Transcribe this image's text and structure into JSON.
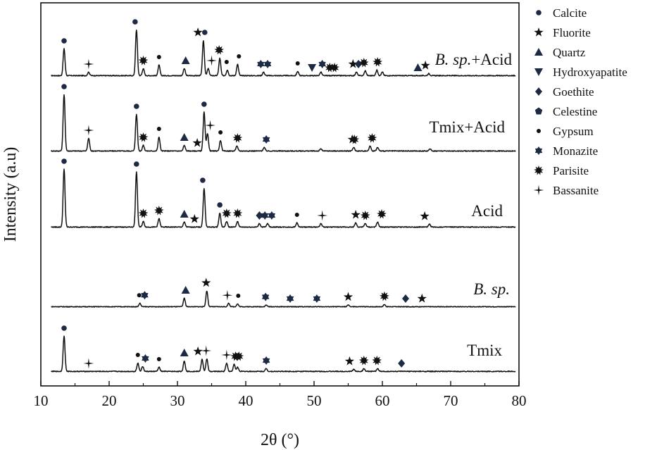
{
  "chart_data": {
    "type": "line",
    "xlabel": "2θ (°)",
    "ylabel": "Intensity (a.u)",
    "xlim": [
      10,
      80
    ],
    "xticks": [
      10,
      20,
      30,
      40,
      50,
      60,
      70,
      80
    ],
    "legend_position": "right",
    "legend": [
      {
        "phase": "Calcite",
        "marker": "filled-circle"
      },
      {
        "phase": "Fluorite",
        "marker": "filled-star"
      },
      {
        "phase": "Quartz",
        "marker": "filled-triangle-up"
      },
      {
        "phase": "Hydroxyapatite",
        "marker": "filled-triangle-down"
      },
      {
        "phase": "Goethite",
        "marker": "filled-diamond"
      },
      {
        "phase": "Celestine",
        "marker": "filled-pentagon"
      },
      {
        "phase": "Gypsum",
        "marker": "small-filled-dot"
      },
      {
        "phase": "Monazite",
        "marker": "filled-flower"
      },
      {
        "phase": "Parisite",
        "marker": "filled-burst"
      },
      {
        "phase": "Bassanite",
        "marker": "thin-cross-star"
      }
    ],
    "series": [
      {
        "name": "B. sp.+Acid",
        "label_parts": [
          {
            "text": "B. sp.",
            "italic": true
          },
          {
            "text": "+Acid",
            "italic": false
          }
        ],
        "peaks": [
          [
            13.4,
            0.38
          ],
          [
            17.0,
            0.05
          ],
          [
            24.0,
            0.65
          ],
          [
            25.0,
            0.1
          ],
          [
            27.3,
            0.15
          ],
          [
            31.0,
            0.1
          ],
          [
            33.8,
            0.5
          ],
          [
            34.5,
            0.1
          ],
          [
            36.2,
            0.25
          ],
          [
            37.3,
            0.08
          ],
          [
            38.8,
            0.16
          ],
          [
            42.6,
            0.05
          ],
          [
            47.6,
            0.06
          ],
          [
            51.0,
            0.05
          ],
          [
            56.2,
            0.05
          ],
          [
            57.5,
            0.07
          ],
          [
            59.2,
            0.08
          ],
          [
            60.0,
            0.05
          ],
          [
            66.8,
            0.03
          ]
        ],
        "markers": [
          {
            "x": 13.4,
            "phase": "Calcite"
          },
          {
            "x": 17.0,
            "phase": "Bassanite"
          },
          {
            "x": 23.8,
            "phase": "Calcite"
          },
          {
            "x": 25.0,
            "phase": "Parisite"
          },
          {
            "x": 27.3,
            "phase": "Gypsum"
          },
          {
            "x": 31.2,
            "phase": "Quartz"
          },
          {
            "x": 33.0,
            "phase": "Fluorite"
          },
          {
            "x": 34.0,
            "phase": "Calcite"
          },
          {
            "x": 35.0,
            "phase": "Bassanite"
          },
          {
            "x": 36.1,
            "phase": "Parisite"
          },
          {
            "x": 37.2,
            "phase": "Gypsum"
          },
          {
            "x": 39.0,
            "phase": "Gypsum"
          },
          {
            "x": 42.2,
            "phase": "Monazite"
          },
          {
            "x": 43.2,
            "phase": "Monazite"
          },
          {
            "x": 47.6,
            "phase": "Gypsum"
          },
          {
            "x": 49.7,
            "phase": "Hydroxyapatite"
          },
          {
            "x": 51.2,
            "phase": "Monazite"
          },
          {
            "x": 52.3,
            "phase": "Parisite"
          },
          {
            "x": 53.0,
            "phase": "Parisite"
          },
          {
            "x": 55.7,
            "phase": "Fluorite"
          },
          {
            "x": 56.5,
            "phase": "Goethite"
          },
          {
            "x": 57.3,
            "phase": "Parisite"
          },
          {
            "x": 59.3,
            "phase": "Parisite"
          },
          {
            "x": 65.2,
            "phase": "Quartz"
          },
          {
            "x": 66.3,
            "phase": "Fluorite"
          }
        ]
      },
      {
        "name": "Tmix+Acid",
        "label_parts": [
          {
            "text": "Tmix+Acid",
            "italic": false
          }
        ],
        "peaks": [
          [
            13.4,
            0.8
          ],
          [
            17.0,
            0.18
          ],
          [
            24.0,
            0.52
          ],
          [
            25.0,
            0.08
          ],
          [
            27.3,
            0.2
          ],
          [
            31.0,
            0.08
          ],
          [
            33.9,
            0.55
          ],
          [
            34.4,
            0.25
          ],
          [
            36.3,
            0.15
          ],
          [
            38.7,
            0.07
          ],
          [
            42.7,
            0.05
          ],
          [
            51.0,
            0.03
          ],
          [
            55.8,
            0.05
          ],
          [
            58.2,
            0.07
          ],
          [
            59.3,
            0.05
          ],
          [
            67.0,
            0.03
          ]
        ],
        "markers": [
          {
            "x": 13.4,
            "phase": "Calcite"
          },
          {
            "x": 17.0,
            "phase": "Bassanite"
          },
          {
            "x": 24.0,
            "phase": "Calcite"
          },
          {
            "x": 25.0,
            "phase": "Parisite"
          },
          {
            "x": 27.3,
            "phase": "Gypsum"
          },
          {
            "x": 31.0,
            "phase": "Quartz"
          },
          {
            "x": 32.9,
            "phase": "Fluorite"
          },
          {
            "x": 33.9,
            "phase": "Calcite"
          },
          {
            "x": 34.8,
            "phase": "Bassanite"
          },
          {
            "x": 36.3,
            "phase": "Gypsum"
          },
          {
            "x": 38.8,
            "phase": "Parisite"
          },
          {
            "x": 43.0,
            "phase": "Monazite"
          },
          {
            "x": 55.9,
            "phase": "Parisite"
          },
          {
            "x": 55.6,
            "phase": "Fluorite"
          },
          {
            "x": 58.5,
            "phase": "Parisite"
          }
        ]
      },
      {
        "name": "Acid",
        "label_parts": [
          {
            "text": "Acid",
            "italic": false
          }
        ],
        "peaks": [
          [
            13.4,
            0.82
          ],
          [
            24.0,
            0.78
          ],
          [
            25.0,
            0.08
          ],
          [
            27.3,
            0.12
          ],
          [
            31.0,
            0.07
          ],
          [
            33.9,
            0.55
          ],
          [
            36.2,
            0.2
          ],
          [
            37.2,
            0.08
          ],
          [
            38.8,
            0.08
          ],
          [
            42.0,
            0.05
          ],
          [
            43.2,
            0.05
          ],
          [
            47.5,
            0.06
          ],
          [
            51.0,
            0.05
          ],
          [
            56.1,
            0.06
          ],
          [
            57.5,
            0.05
          ],
          [
            59.3,
            0.07
          ],
          [
            66.9,
            0.04
          ]
        ],
        "markers": [
          {
            "x": 13.4,
            "phase": "Calcite"
          },
          {
            "x": 24.0,
            "phase": "Calcite"
          },
          {
            "x": 25.0,
            "phase": "Parisite"
          },
          {
            "x": 27.3,
            "phase": "Parisite"
          },
          {
            "x": 31.0,
            "phase": "Quartz"
          },
          {
            "x": 32.5,
            "phase": "Fluorite"
          },
          {
            "x": 33.7,
            "phase": "Calcite"
          },
          {
            "x": 36.2,
            "phase": "Calcite"
          },
          {
            "x": 37.2,
            "phase": "Parisite"
          },
          {
            "x": 38.8,
            "phase": "Parisite"
          },
          {
            "x": 42.0,
            "phase": "Goethite"
          },
          {
            "x": 42.8,
            "phase": "Monazite"
          },
          {
            "x": 43.8,
            "phase": "Monazite"
          },
          {
            "x": 47.5,
            "phase": "Gypsum"
          },
          {
            "x": 51.2,
            "phase": "Bassanite"
          },
          {
            "x": 56.1,
            "phase": "Fluorite"
          },
          {
            "x": 57.5,
            "phase": "Parisite"
          },
          {
            "x": 59.9,
            "phase": "Parisite"
          },
          {
            "x": 66.2,
            "phase": "Fluorite"
          }
        ]
      },
      {
        "name": "B. sp.",
        "label_parts": [
          {
            "text": "B. sp.",
            "italic": true
          }
        ],
        "peaks": [
          [
            24.5,
            0.06
          ],
          [
            31.0,
            0.15
          ],
          [
            34.3,
            0.28
          ],
          [
            37.5,
            0.06
          ],
          [
            38.8,
            0.05
          ],
          [
            43.0,
            0.03
          ],
          [
            55.0,
            0.03
          ],
          [
            60.3,
            0.04
          ]
        ],
        "markers": [
          {
            "x": 24.4,
            "phase": "Gypsum"
          },
          {
            "x": 25.2,
            "phase": "Monazite"
          },
          {
            "x": 31.2,
            "phase": "Quartz"
          },
          {
            "x": 34.2,
            "phase": "Fluorite"
          },
          {
            "x": 37.3,
            "phase": "Bassanite"
          },
          {
            "x": 38.9,
            "phase": "Gypsum"
          },
          {
            "x": 42.9,
            "phase": "Monazite"
          },
          {
            "x": 46.5,
            "phase": "Monazite"
          },
          {
            "x": 50.4,
            "phase": "Monazite"
          },
          {
            "x": 55.0,
            "phase": "Fluorite"
          },
          {
            "x": 60.3,
            "phase": "Parisite"
          },
          {
            "x": 63.4,
            "phase": "Goethite"
          },
          {
            "x": 65.8,
            "phase": "Fluorite"
          }
        ]
      },
      {
        "name": "Tmix",
        "label_parts": [
          {
            "text": "Tmix",
            "italic": false
          }
        ],
        "peaks": [
          [
            13.4,
            0.5
          ],
          [
            24.2,
            0.12
          ],
          [
            24.9,
            0.07
          ],
          [
            27.3,
            0.06
          ],
          [
            31.0,
            0.15
          ],
          [
            33.6,
            0.17
          ],
          [
            34.3,
            0.18
          ],
          [
            37.2,
            0.12
          ],
          [
            38.3,
            0.1
          ],
          [
            38.8,
            0.06
          ],
          [
            43.0,
            0.04
          ],
          [
            55.8,
            0.03
          ],
          [
            57.3,
            0.04
          ],
          [
            59.3,
            0.04
          ]
        ],
        "markers": [
          {
            "x": 13.4,
            "phase": "Calcite"
          },
          {
            "x": 17.0,
            "phase": "Bassanite"
          },
          {
            "x": 24.2,
            "phase": "Gypsum"
          },
          {
            "x": 25.3,
            "phase": "Monazite"
          },
          {
            "x": 27.3,
            "phase": "Gypsum"
          },
          {
            "x": 31.0,
            "phase": "Quartz"
          },
          {
            "x": 33.0,
            "phase": "Fluorite"
          },
          {
            "x": 34.2,
            "phase": "Bassanite"
          },
          {
            "x": 37.2,
            "phase": "Bassanite"
          },
          {
            "x": 38.5,
            "phase": "Parisite"
          },
          {
            "x": 39.0,
            "phase": "Parisite"
          },
          {
            "x": 43.0,
            "phase": "Monazite"
          },
          {
            "x": 55.2,
            "phase": "Fluorite"
          },
          {
            "x": 57.3,
            "phase": "Parisite"
          },
          {
            "x": 59.2,
            "phase": "Parisite"
          },
          {
            "x": 62.8,
            "phase": "Goethite"
          }
        ]
      }
    ]
  }
}
